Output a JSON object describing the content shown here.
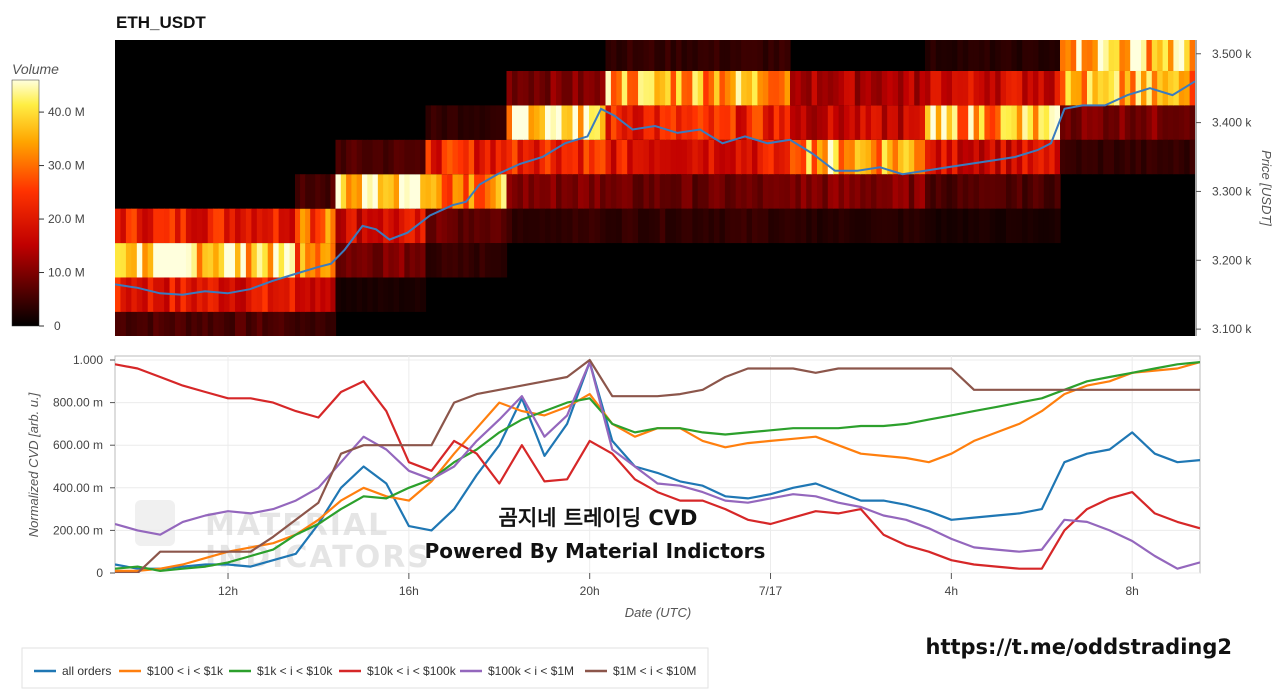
{
  "title": "ETH_USDT",
  "colorbar": {
    "title": "Volume",
    "ticks": [
      {
        "v": 0,
        "label": "0"
      },
      {
        "v": 10,
        "label": "10.0 M"
      },
      {
        "v": 20,
        "label": "20.0 M"
      },
      {
        "v": 30,
        "label": "30.0 M"
      },
      {
        "v": 40,
        "label": "40.0 M"
      }
    ],
    "max": 46
  },
  "overlay_text": {
    "line1": "곰지네 트레이딩 CVD",
    "line2": "Powered By Material Indictors",
    "link": "https://t.me/oddstrading2",
    "watermark_line1": "MATERIAL",
    "watermark_line2": "INDICATORS"
  },
  "chart_data": [
    {
      "type": "heatmap",
      "ylabel": "Price [USDT]",
      "y_ticks": [
        {
          "v": 3100,
          "label": "3.100 k"
        },
        {
          "v": 3200,
          "label": "3.200 k"
        },
        {
          "v": 3300,
          "label": "3.300 k"
        },
        {
          "v": 3400,
          "label": "3.400 k"
        },
        {
          "v": 3500,
          "label": "3.500 k"
        }
      ],
      "ylim": [
        3090,
        3520
      ],
      "xlim": [
        9.5,
        33.5
      ],
      "bucket_size_usdt": 50,
      "heat_levels": [
        {
          "t0": 9.5,
          "t1": 13.5,
          "rows": {
            "3100": 6,
            "3150": 20,
            "3200": 42,
            "3250": 22,
            "3300": 0
          }
        },
        {
          "t0": 13.5,
          "t1": 14.4,
          "rows": {
            "3100": 4,
            "3150": 14,
            "3200": 30,
            "3250": 28,
            "3300": 6
          }
        },
        {
          "t0": 14.4,
          "t1": 16.4,
          "rows": {
            "3150": 2,
            "3200": 10,
            "3250": 18,
            "3300": 42,
            "3350": 6
          }
        },
        {
          "t0": 16.4,
          "t1": 18.2,
          "rows": {
            "3200": 4,
            "3250": 8,
            "3300": 34,
            "3350": 22,
            "3400": 4
          }
        },
        {
          "t0": 18.2,
          "t1": 20.4,
          "rows": {
            "3250": 4,
            "3300": 10,
            "3350": 24,
            "3400": 40,
            "3450": 10
          }
        },
        {
          "t0": 20.4,
          "t1": 24.5,
          "rows": {
            "3250": 4,
            "3300": 8,
            "3350": 20,
            "3400": 22,
            "3450": 36,
            "3500": 4
          }
        },
        {
          "t0": 24.5,
          "t1": 27.5,
          "rows": {
            "3250": 3,
            "3300": 10,
            "3350": 36,
            "3400": 16,
            "3450": 14
          }
        },
        {
          "t0": 27.5,
          "t1": 30.5,
          "rows": {
            "3250": 2,
            "3300": 6,
            "3350": 18,
            "3400": 36,
            "3450": 18,
            "3500": 3
          }
        },
        {
          "t0": 30.5,
          "t1": 33.5,
          "rows": {
            "3350": 4,
            "3400": 10,
            "3450": 34,
            "3500": 40
          }
        }
      ],
      "price_series": {
        "name": "price",
        "t": [
          9.5,
          10.0,
          10.5,
          11.0,
          11.5,
          12.0,
          12.5,
          13.0,
          13.5,
          14.0,
          14.3,
          14.6,
          15.0,
          15.3,
          15.6,
          16.0,
          16.5,
          17.0,
          17.3,
          17.6,
          18.0,
          18.5,
          19.0,
          19.5,
          20.0,
          20.3,
          20.6,
          21.0,
          21.5,
          22.0,
          22.5,
          23.0,
          23.5,
          24.0,
          24.5,
          25.0,
          25.5,
          26.0,
          26.5,
          27.0,
          27.5,
          28.0,
          28.5,
          29.0,
          29.5,
          30.0,
          30.3,
          30.6,
          31.0,
          31.5,
          32.0,
          32.5,
          33.0,
          33.5
        ],
        "v": [
          3165,
          3160,
          3152,
          3150,
          3155,
          3152,
          3158,
          3170,
          3180,
          3190,
          3195,
          3215,
          3250,
          3245,
          3230,
          3240,
          3265,
          3280,
          3285,
          3310,
          3325,
          3340,
          3350,
          3370,
          3380,
          3420,
          3410,
          3390,
          3395,
          3385,
          3390,
          3370,
          3380,
          3370,
          3375,
          3355,
          3330,
          3330,
          3335,
          3325,
          3330,
          3335,
          3340,
          3345,
          3350,
          3360,
          3370,
          3420,
          3425,
          3425,
          3440,
          3450,
          3440,
          3460
        ]
      }
    },
    {
      "type": "line",
      "xlabel": "Date (UTC)",
      "ylabel": "Normalized CVD [arb. u.]",
      "ylim": [
        0,
        1000
      ],
      "xlim": [
        9.5,
        33.5
      ],
      "x_ticks": [
        {
          "v": 12,
          "label": "12h"
        },
        {
          "v": 16,
          "label": "16h"
        },
        {
          "v": 20,
          "label": "20h"
        },
        {
          "v": 24,
          "label": "7/17"
        },
        {
          "v": 28,
          "label": "4h"
        },
        {
          "v": 32,
          "label": "8h"
        }
      ],
      "y_ticks": [
        {
          "v": 0,
          "label": "0"
        },
        {
          "v": 200,
          "label": "200.00 m"
        },
        {
          "v": 400,
          "label": "400.00 m"
        },
        {
          "v": 600,
          "label": "600.00 m"
        },
        {
          "v": 800,
          "label": "800.00 m"
        },
        {
          "v": 1000,
          "label": "1.000"
        }
      ],
      "x": [
        9.5,
        10.0,
        10.5,
        11.0,
        11.5,
        12.0,
        12.5,
        13.0,
        13.5,
        14.0,
        14.5,
        15.0,
        15.5,
        16.0,
        16.5,
        17.0,
        17.5,
        18.0,
        18.5,
        19.0,
        19.5,
        20.0,
        20.5,
        21.0,
        21.5,
        22.0,
        22.5,
        23.0,
        23.5,
        24.0,
        24.5,
        25.0,
        25.5,
        26.0,
        26.5,
        27.0,
        27.5,
        28.0,
        28.5,
        29.0,
        29.5,
        30.0,
        30.5,
        31.0,
        31.5,
        32.0,
        32.5,
        33.0,
        33.5
      ],
      "series": [
        {
          "name": "all orders",
          "color": "#1f77b4",
          "values": [
            40,
            20,
            20,
            30,
            40,
            40,
            30,
            60,
            90,
            230,
            400,
            500,
            420,
            220,
            200,
            300,
            460,
            600,
            820,
            550,
            700,
            990,
            620,
            500,
            470,
            430,
            410,
            360,
            350,
            370,
            400,
            420,
            380,
            340,
            340,
            320,
            290,
            250,
            260,
            270,
            280,
            300,
            520,
            560,
            580,
            660,
            560,
            520,
            530
          ]
        },
        {
          "name": "$100 < i < $1k",
          "color": "#ff7f0e",
          "values": [
            10,
            10,
            20,
            40,
            70,
            100,
            120,
            140,
            180,
            250,
            340,
            400,
            360,
            340,
            430,
            560,
            680,
            800,
            760,
            740,
            780,
            840,
            700,
            640,
            680,
            680,
            620,
            590,
            610,
            620,
            630,
            640,
            600,
            560,
            550,
            540,
            520,
            560,
            620,
            660,
            700,
            760,
            840,
            880,
            900,
            940,
            950,
            960,
            990
          ]
        },
        {
          "name": "$1k < i < $10k",
          "color": "#2ca02c",
          "values": [
            20,
            30,
            10,
            20,
            30,
            50,
            80,
            110,
            180,
            230,
            300,
            360,
            350,
            400,
            440,
            520,
            580,
            660,
            720,
            760,
            800,
            820,
            700,
            660,
            680,
            680,
            660,
            650,
            660,
            670,
            680,
            680,
            680,
            690,
            690,
            700,
            720,
            740,
            760,
            780,
            800,
            820,
            860,
            900,
            920,
            940,
            960,
            980,
            990
          ]
        },
        {
          "name": "$10k < i < $100k",
          "color": "#d62728",
          "values": [
            980,
            960,
            920,
            880,
            850,
            820,
            820,
            800,
            760,
            730,
            850,
            900,
            760,
            520,
            480,
            620,
            560,
            420,
            600,
            430,
            440,
            620,
            560,
            440,
            380,
            340,
            340,
            300,
            250,
            230,
            260,
            290,
            280,
            300,
            180,
            130,
            100,
            60,
            40,
            30,
            20,
            20,
            200,
            300,
            350,
            380,
            280,
            240,
            210
          ]
        },
        {
          "name": "$100k < i < $1M",
          "color": "#9467bd",
          "values": [
            230,
            200,
            180,
            240,
            270,
            290,
            280,
            300,
            340,
            400,
            520,
            640,
            580,
            480,
            440,
            500,
            620,
            720,
            830,
            640,
            740,
            990,
            580,
            500,
            420,
            410,
            380,
            340,
            330,
            350,
            370,
            360,
            330,
            310,
            270,
            250,
            210,
            160,
            120,
            110,
            100,
            110,
            250,
            240,
            200,
            150,
            80,
            20,
            50
          ]
        },
        {
          "name": "$1M < i < $10M",
          "color": "#8c564b",
          "values": [
            0,
            0,
            100,
            100,
            100,
            100,
            100,
            170,
            250,
            330,
            560,
            600,
            600,
            600,
            600,
            800,
            840,
            860,
            880,
            900,
            920,
            1000,
            830,
            830,
            830,
            840,
            860,
            920,
            960,
            960,
            960,
            940,
            960,
            960,
            960,
            960,
            960,
            960,
            860,
            860,
            860,
            860,
            860,
            860,
            860,
            860,
            860,
            860,
            860
          ]
        }
      ]
    }
  ]
}
